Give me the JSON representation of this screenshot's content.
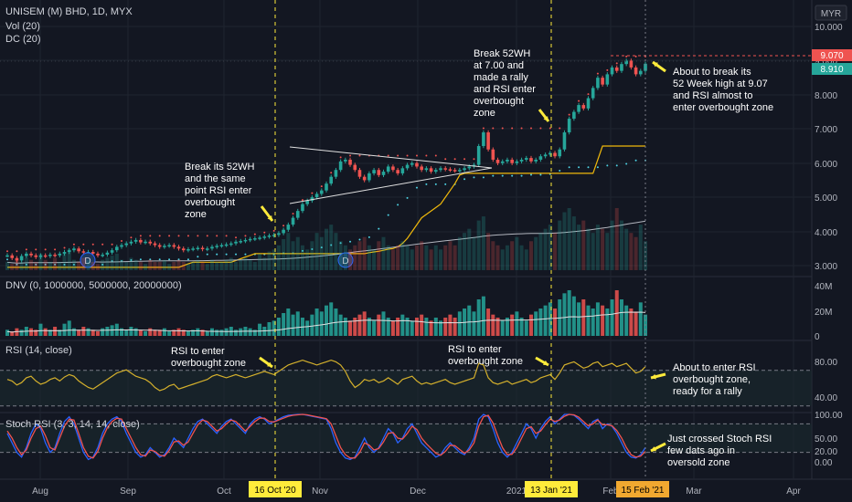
{
  "header": {
    "title": "UNISEM (M) BHD, 1D, MYX",
    "line2": "Vol (20)",
    "line3": "DC (20)"
  },
  "currency": "MYR",
  "price_tags": {
    "high": "9.070",
    "last": "8.910"
  },
  "colors": {
    "bg": "#131722",
    "up": "#26a69a",
    "down": "#ef5350",
    "grid": "#1f2430",
    "yellow": "#ffeb3b",
    "gold": "#f0b90b",
    "rsi": "#d4b02c",
    "stoch_k": "#2962ff",
    "stoch_d": "#ef5350"
  },
  "panes": {
    "volume_title": "DNV (0, 1000000, 5000000, 20000000)",
    "rsi_title": "RSI (14, close)",
    "stoch_title": "Stoch RSI (3, 3, 14, 14, close)"
  },
  "chart_data": {
    "type": "candlestick",
    "price_axis_ticks": [
      "10.000",
      "9.000",
      "8.000",
      "7.000",
      "6.000",
      "5.000",
      "4.000",
      "3.000"
    ],
    "volume_axis_ticks": [
      "40M",
      "20M",
      "0"
    ],
    "rsi_axis_ticks": [
      "80.00",
      "40.00"
    ],
    "stoch_axis_ticks": [
      "100.00",
      "50.00",
      "20.00",
      "0.00"
    ],
    "x_tick_labels": [
      "Aug",
      "Sep",
      "Oct",
      "Nov",
      "Dec",
      "2021",
      "Feb",
      "Mar",
      "Apr"
    ],
    "highlighted_dates": [
      "16 Oct '20",
      "13 Jan '21",
      "15 Feb '21"
    ],
    "price_range": [
      2.85,
      10.4
    ],
    "prices": [
      3.3,
      3.22,
      3.15,
      3.28,
      3.35,
      3.3,
      3.25,
      3.3,
      3.28,
      3.32,
      3.3,
      3.35,
      3.4,
      3.45,
      3.5,
      3.42,
      3.38,
      3.4,
      3.35,
      3.3,
      3.32,
      3.38,
      3.45,
      3.55,
      3.6,
      3.65,
      3.7,
      3.75,
      3.68,
      3.7,
      3.65,
      3.6,
      3.55,
      3.58,
      3.6,
      3.55,
      3.5,
      3.45,
      3.48,
      3.5,
      3.52,
      3.48,
      3.5,
      3.55,
      3.58,
      3.6,
      3.62,
      3.65,
      3.7,
      3.72,
      3.75,
      3.78,
      3.8,
      3.82,
      3.85,
      3.88,
      3.9,
      3.95,
      4.05,
      4.2,
      4.4,
      4.6,
      4.8,
      4.9,
      5.0,
      5.1,
      5.2,
      5.4,
      5.6,
      5.8,
      6.05,
      6.1,
      5.95,
      5.8,
      5.6,
      5.5,
      5.7,
      5.8,
      5.65,
      5.75,
      5.9,
      5.8,
      5.7,
      5.85,
      5.95,
      6.0,
      5.9,
      5.8,
      5.85,
      5.75,
      5.8,
      5.85,
      5.82,
      5.8,
      5.78,
      5.8,
      5.85,
      5.9,
      5.95,
      6.5,
      6.9,
      6.4,
      6.1,
      6.0,
      6.05,
      6.1,
      6.0,
      6.05,
      6.1,
      6.15,
      6.05,
      6.1,
      6.2,
      6.25,
      6.3,
      6.2,
      6.4,
      6.9,
      7.3,
      7.5,
      7.7,
      7.6,
      7.9,
      8.2,
      8.5,
      8.3,
      8.6,
      8.8,
      8.7,
      8.9,
      9.0,
      8.8,
      8.6,
      8.7,
      8.91
    ],
    "volumes": [
      4,
      3,
      5,
      4,
      6,
      5,
      4,
      8,
      5,
      4,
      6,
      4,
      8,
      10,
      5,
      4,
      6,
      5,
      4,
      3,
      5,
      6,
      7,
      8,
      5,
      4,
      6,
      5,
      4,
      3,
      5,
      4,
      4,
      5,
      3,
      4,
      5,
      4,
      3,
      4,
      5,
      4,
      3,
      5,
      4,
      4,
      5,
      6,
      4,
      5,
      6,
      5,
      4,
      8,
      6,
      9,
      10,
      12,
      15,
      18,
      14,
      16,
      12,
      10,
      14,
      18,
      16,
      20,
      22,
      18,
      14,
      12,
      10,
      12,
      14,
      16,
      12,
      10,
      14,
      16,
      12,
      10,
      12,
      14,
      12,
      10,
      12,
      14,
      12,
      10,
      12,
      10,
      12,
      14,
      12,
      16,
      18,
      20,
      16,
      24,
      26,
      18,
      14,
      12,
      10,
      12,
      14,
      16,
      12,
      10,
      14,
      16,
      18,
      20,
      22,
      18,
      24,
      28,
      30,
      26,
      22,
      24,
      20,
      18,
      22,
      20,
      18,
      24,
      30,
      24,
      20,
      18,
      16,
      22,
      14
    ],
    "rsi": [
      62,
      60,
      55,
      58,
      64,
      66,
      60,
      56,
      58,
      62,
      64,
      60,
      65,
      68,
      66,
      60,
      56,
      52,
      50,
      54,
      58,
      62,
      66,
      70,
      72,
      74,
      70,
      66,
      64,
      62,
      58,
      52,
      48,
      50,
      54,
      56,
      50,
      52,
      54,
      56,
      58,
      60,
      62,
      66,
      68,
      66,
      64,
      66,
      68,
      66,
      64,
      66,
      68,
      70,
      72,
      70,
      68,
      72,
      76,
      80,
      82,
      84,
      86,
      84,
      82,
      80,
      82,
      84,
      86,
      84,
      80,
      72,
      60,
      52,
      56,
      62,
      60,
      62,
      58,
      60,
      64,
      60,
      56,
      62,
      64,
      66,
      60,
      56,
      58,
      56,
      58,
      60,
      62,
      58,
      56,
      58,
      60,
      62,
      64,
      82,
      80,
      64,
      58,
      56,
      58,
      60,
      56,
      58,
      60,
      62,
      58,
      60,
      64,
      66,
      68,
      62,
      70,
      80,
      82,
      84,
      80,
      76,
      78,
      82,
      84,
      78,
      80,
      82,
      78,
      80,
      82,
      76,
      70,
      72,
      78
    ],
    "stoch_k": [
      60,
      40,
      20,
      10,
      30,
      60,
      80,
      70,
      40,
      20,
      30,
      60,
      85,
      95,
      80,
      50,
      20,
      5,
      10,
      30,
      60,
      80,
      90,
      95,
      85,
      60,
      40,
      20,
      10,
      15,
      30,
      20,
      10,
      15,
      30,
      50,
      40,
      30,
      50,
      70,
      85,
      90,
      80,
      70,
      60,
      75,
      85,
      90,
      80,
      70,
      60,
      80,
      90,
      95,
      90,
      80,
      85,
      90,
      95,
      98,
      99,
      100,
      100,
      98,
      96,
      94,
      92,
      90,
      70,
      40,
      20,
      8,
      5,
      10,
      30,
      50,
      30,
      20,
      30,
      50,
      70,
      60,
      40,
      50,
      70,
      80,
      60,
      40,
      30,
      20,
      10,
      15,
      30,
      40,
      30,
      20,
      15,
      30,
      50,
      90,
      100,
      95,
      70,
      40,
      20,
      10,
      20,
      40,
      60,
      80,
      70,
      50,
      70,
      85,
      95,
      80,
      90,
      100,
      100,
      98,
      90,
      80,
      70,
      85,
      90,
      70,
      80,
      75,
      60,
      40,
      20,
      10,
      8,
      15,
      30
    ],
    "stoch_d": [
      65,
      50,
      30,
      15,
      25,
      50,
      70,
      75,
      55,
      30,
      25,
      50,
      75,
      90,
      88,
      60,
      30,
      12,
      8,
      22,
      50,
      72,
      85,
      92,
      90,
      70,
      50,
      30,
      15,
      12,
      25,
      22,
      14,
      12,
      24,
      42,
      44,
      35,
      42,
      60,
      78,
      88,
      85,
      75,
      65,
      70,
      80,
      88,
      85,
      75,
      65,
      75,
      85,
      92,
      92,
      85,
      84,
      88,
      92,
      96,
      98,
      99,
      100,
      99,
      97,
      95,
      93,
      91,
      80,
      55,
      30,
      15,
      8,
      8,
      20,
      40,
      35,
      25,
      28,
      42,
      60,
      62,
      50,
      48,
      60,
      75,
      68,
      50,
      38,
      28,
      18,
      14,
      22,
      35,
      34,
      26,
      18,
      25,
      40,
      75,
      95,
      98,
      82,
      55,
      30,
      15,
      16,
      30,
      50,
      70,
      74,
      60,
      65,
      78,
      90,
      85,
      88,
      96,
      100,
      99,
      94,
      85,
      76,
      80,
      88,
      78,
      78,
      76,
      66,
      50,
      30,
      15,
      10,
      12,
      22
    ],
    "annotations": [
      "Break its 52WH and the same point RSI enter overbought zone",
      "Break 52WH at 7.00 and made a rally and RSI enter overbought zone",
      "About to break its 52 Week high at 9.07 and RSI almost to enter overbought zone",
      "RSI to enter overbought zone",
      "RSI to enter overbought zone",
      "About to enter RSI overbought zone, ready for a rally",
      "Just crossed Stoch RSI few dats ago in oversold zone"
    ]
  },
  "annotation_lines": [
    [
      "Break its 52WH",
      "and the same",
      "point RSI enter",
      "overbought",
      "zone"
    ],
    [
      "Break 52WH",
      "at 7.00 and",
      "made a rally",
      "and RSI enter",
      "overbought",
      "zone"
    ],
    [
      "About to break its",
      "52 Week high at 9.07",
      "and RSI almost to",
      "enter overbought zone"
    ],
    [
      "RSI to enter",
      "overbought zone"
    ],
    [
      "RSI to enter",
      "overbought zone"
    ],
    [
      "About to enter RSI",
      "overbought zone,",
      "ready for a rally"
    ],
    [
      "Just crossed Stoch RSI",
      "few dats ago in",
      "oversold zone"
    ]
  ]
}
